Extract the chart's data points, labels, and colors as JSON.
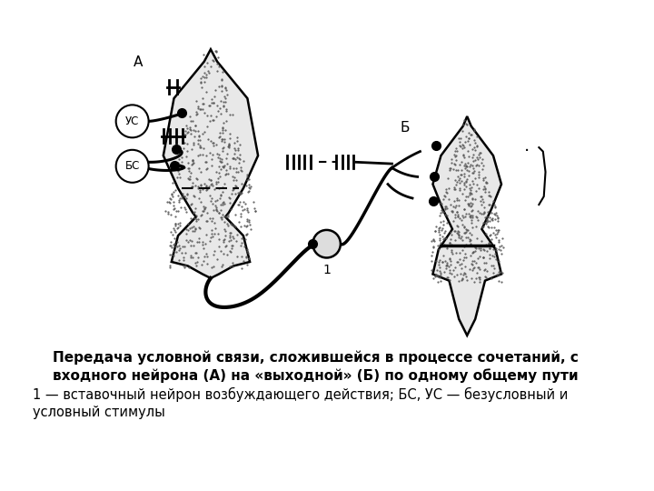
{
  "bg_color": "#ffffff",
  "title_bold": "Передача условной связи, сложившейся в процессе сочетаний, с\nвходного нейрона (А) на «выходной» (Б) по одному общему пути",
  "subtitle": "1 — вставочный нейрон возбуждающего действия; БС, УС — безусловный и\nусловный стимулы",
  "neuron_stipple_color": "#aaaaaa",
  "neuron_edge_color": "#000000"
}
